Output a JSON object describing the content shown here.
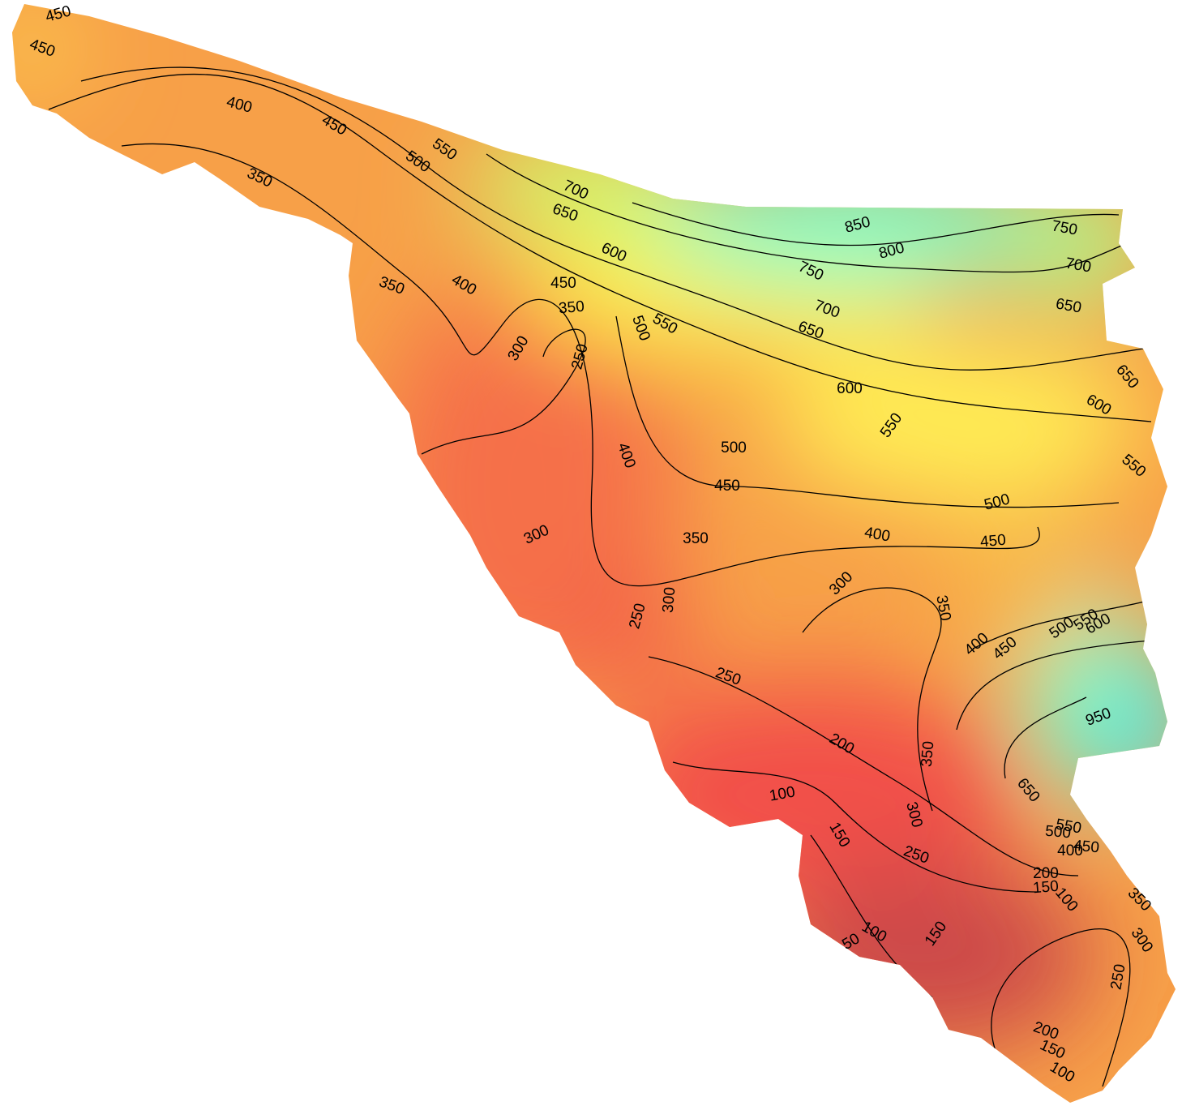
{
  "contour_labels": [
    450,
    450,
    400,
    450,
    350,
    550,
    500,
    700,
    650,
    850,
    800,
    750,
    700,
    750,
    600,
    350,
    400,
    450,
    350,
    700,
    650,
    550,
    500,
    650,
    300,
    250,
    650,
    600,
    600,
    550,
    500,
    550,
    400,
    450,
    500,
    300,
    350,
    400,
    450,
    300,
    350,
    300,
    250,
    400,
    450,
    500,
    550,
    600,
    250,
    950,
    200,
    350,
    100,
    650,
    300,
    150,
    550,
    500,
    450,
    400,
    250,
    200,
    150,
    100,
    350,
    300,
    100,
    50,
    150,
    250,
    200,
    150,
    100
  ]
}
